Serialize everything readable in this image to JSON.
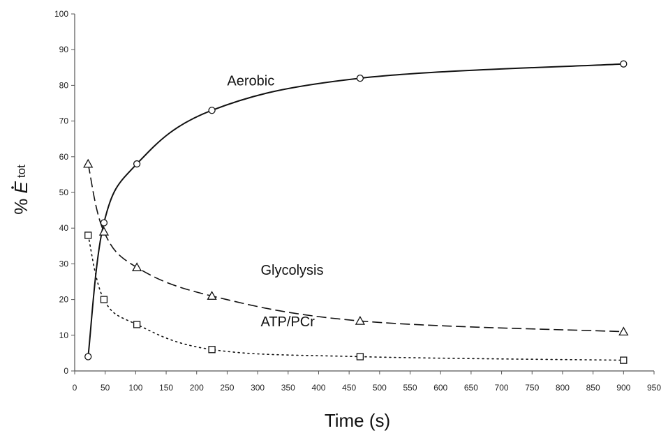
{
  "chart_data": {
    "type": "line",
    "title": "",
    "xlabel": "Time (s)",
    "ylabel": {
      "prefix": "% ",
      "symbol": "E",
      "subscript": "tot"
    },
    "xlim": [
      0,
      950
    ],
    "ylim": [
      0,
      100
    ],
    "x_ticks": [
      0,
      50,
      100,
      150,
      200,
      250,
      300,
      350,
      400,
      450,
      500,
      550,
      600,
      650,
      700,
      750,
      800,
      850,
      900,
      950
    ],
    "y_ticks": [
      0,
      10,
      20,
      30,
      40,
      50,
      60,
      70,
      80,
      90,
      100
    ],
    "grid": false,
    "legend": "none",
    "series": [
      {
        "name": "Aerobic",
        "marker": "circle",
        "line_style": "solid",
        "x": [
          22,
          48,
          102,
          225,
          468,
          900
        ],
        "y": [
          4,
          41.5,
          58,
          73,
          82,
          86
        ]
      },
      {
        "name": "Glycolysis",
        "marker": "triangle",
        "line_style": "dashed",
        "x": [
          22,
          48,
          102,
          225,
          468,
          900
        ],
        "y": [
          58,
          39,
          29,
          21,
          14,
          11
        ]
      },
      {
        "name": "ATP/PCr",
        "marker": "square",
        "line_style": "dotted",
        "x": [
          22,
          48,
          102,
          225,
          468,
          900
        ],
        "y": [
          38,
          20,
          13,
          6,
          4,
          3
        ]
      }
    ],
    "annotations": [
      {
        "text": "Aerobic",
        "series": "Aerobic",
        "x": 250,
        "y": 80
      },
      {
        "text": "Glycolysis",
        "series": "Glycolysis",
        "x": 305,
        "y": 27
      },
      {
        "text": "ATP/PCr",
        "series": "ATP/PCr",
        "x": 305,
        "y": 12.5
      }
    ]
  }
}
